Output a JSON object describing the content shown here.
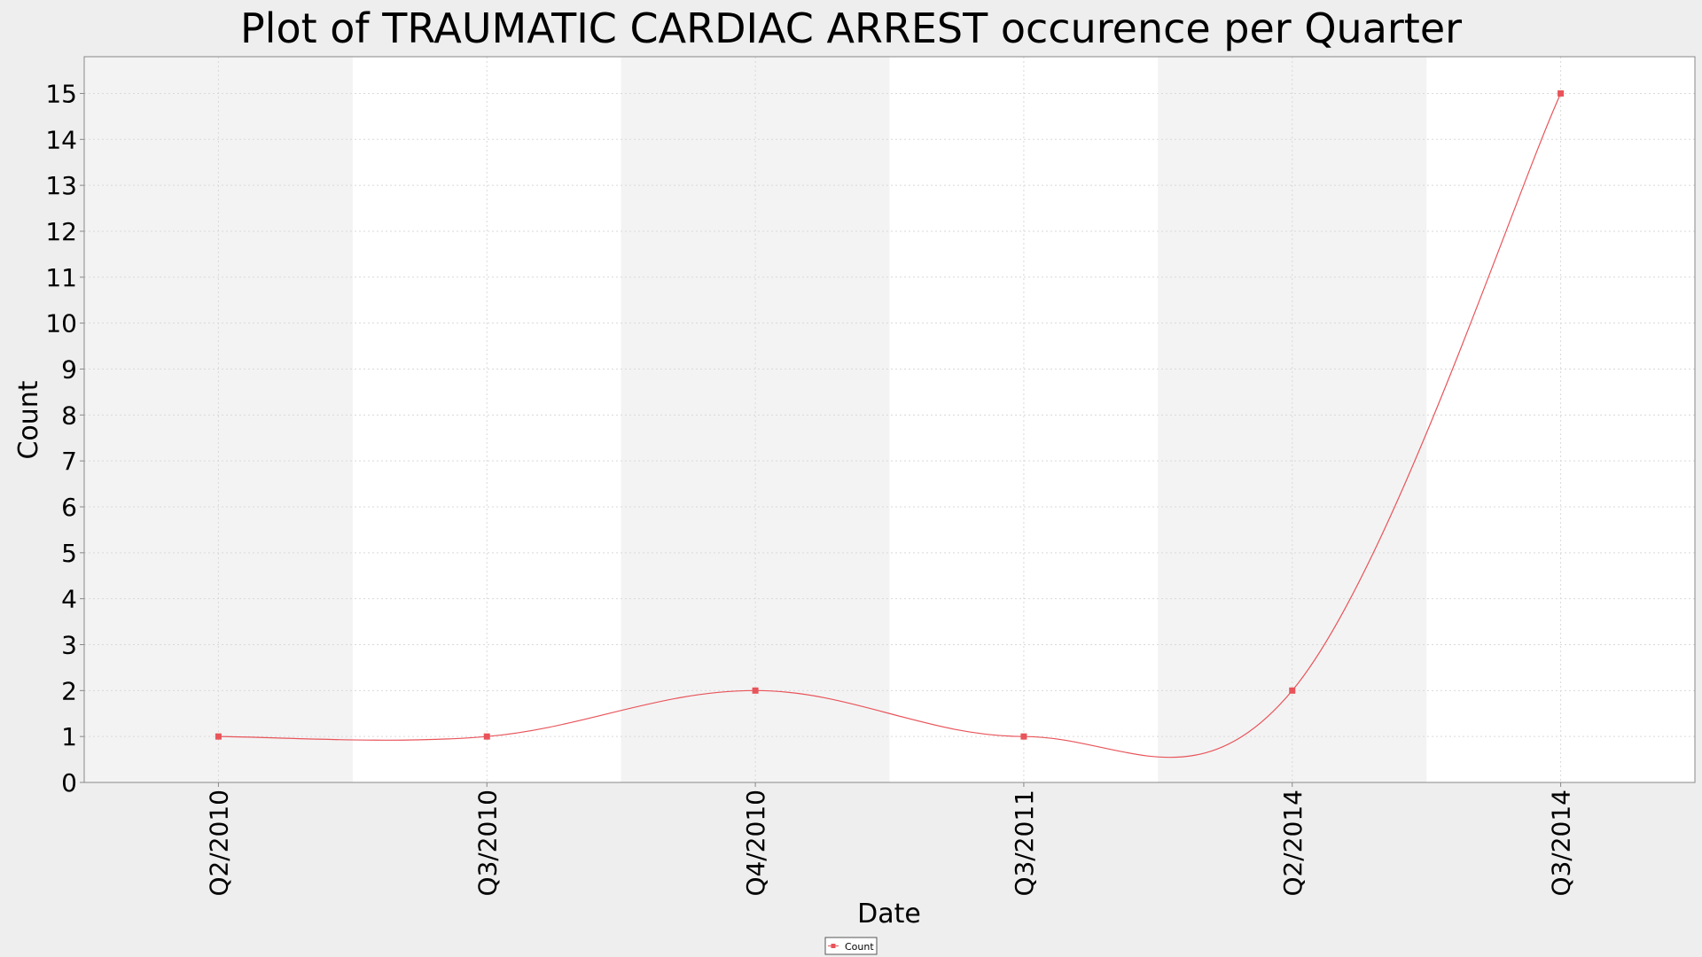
{
  "chart_data": {
    "type": "line",
    "title": "Plot of TRAUMATIC CARDIAC ARREST occurence per Quarter",
    "xlabel": "Date",
    "ylabel": "Count",
    "categories": [
      "Q2/2010",
      "Q3/2010",
      "Q4/2010",
      "Q3/2011",
      "Q2/2014",
      "Q3/2014"
    ],
    "series": [
      {
        "name": "Count",
        "values": [
          1,
          1,
          2,
          1,
          2,
          15
        ],
        "color": "#e8545a"
      }
    ],
    "ylim": [
      0,
      15.8
    ],
    "yticks": [
      "0",
      "1",
      "2",
      "3",
      "4",
      "5",
      "6",
      "7",
      "8",
      "9",
      "10",
      "11",
      "12",
      "13",
      "14",
      "15"
    ],
    "smoothed": true,
    "grid": true,
    "legend_position": "bottom-center",
    "colors": {
      "background": "#eeeeee",
      "plot_band_light": "#ffffff",
      "plot_band_dark": "#f3f3f3",
      "grid": "#d9d9d9",
      "axis": "#888888",
      "line": "#e8545a"
    }
  }
}
